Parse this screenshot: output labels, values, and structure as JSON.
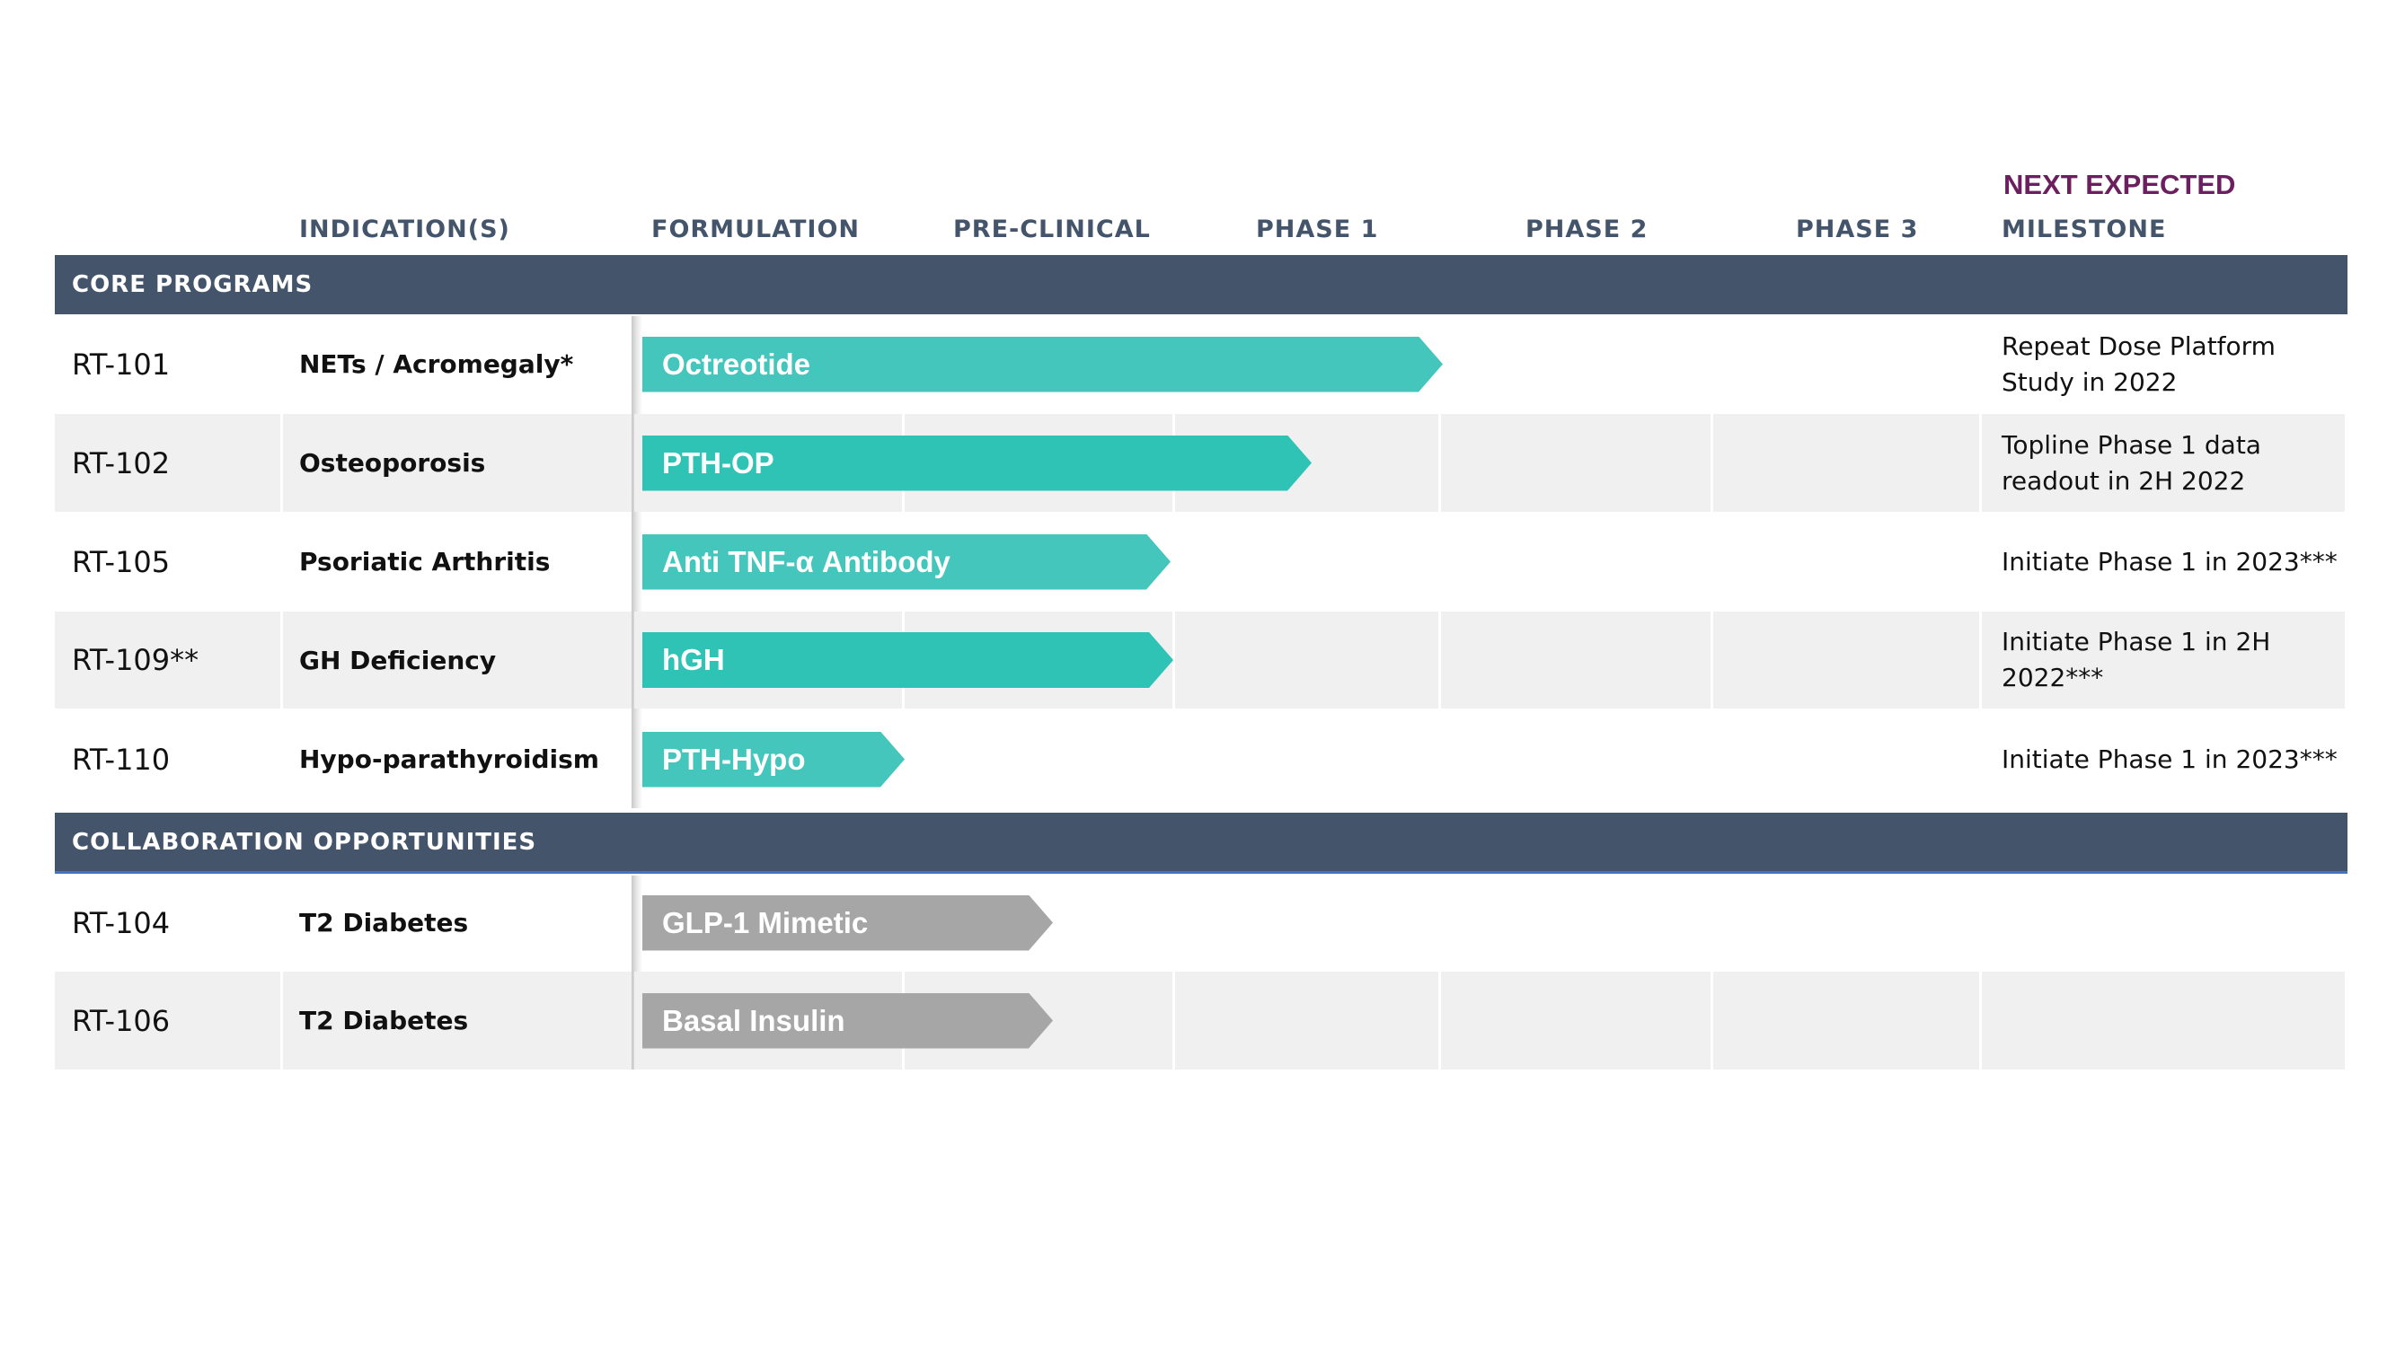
{
  "header": {
    "columns": [
      "INDICATION(S)",
      "FORMULATION",
      "PRE-CLINICAL",
      "PHASE 1",
      "PHASE 2",
      "PHASE 3",
      "MILESTONE"
    ],
    "milestone_prefix": "NEXT EXPECTED"
  },
  "sections": [
    {
      "title": "CORE PROGRAMS",
      "rows": [
        {
          "program": "RT-101",
          "indication": "NETs / Acromegaly*",
          "formulation": "Octreotide",
          "milestone": "Repeat Dose Platform Study in 2022"
        },
        {
          "program": "RT-102",
          "indication": "Osteoporosis",
          "formulation": "PTH-OP",
          "milestone": "Topline Phase 1 data readout in 2H 2022"
        },
        {
          "program": "RT-105",
          "indication": "Psoriatic Arthritis",
          "formulation": "Anti TNF-α Antibody",
          "milestone": "Initiate Phase 1 in 2023***"
        },
        {
          "program": "RT-109**",
          "indication": "GH Deficiency",
          "formulation": "hGH",
          "milestone": "Initiate Phase 1 in 2H 2022***"
        },
        {
          "program": "RT-110",
          "indication": "Hypo-parathyroidism",
          "formulation": "PTH-Hypo",
          "milestone": "Initiate Phase 1 in 2023***"
        }
      ]
    },
    {
      "title": "COLLABORATION OPPORTUNITIES",
      "rows": [
        {
          "program": "RT-104",
          "indication": "T2 Diabetes",
          "formulation": "GLP-1 Mimetic"
        },
        {
          "program": "RT-106",
          "indication": "T2 Diabetes",
          "formulation": "Basal Insulin"
        }
      ]
    }
  ]
}
